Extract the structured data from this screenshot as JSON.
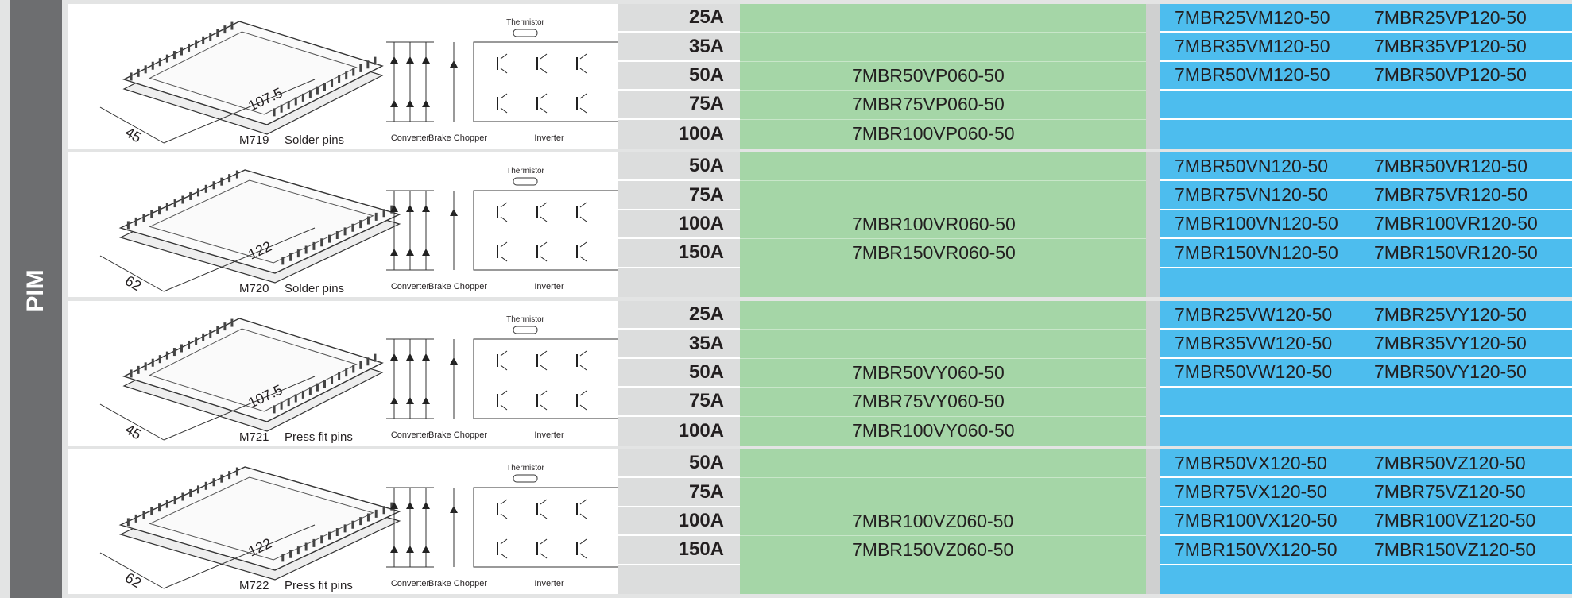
{
  "side_label": "PIM",
  "groups": [
    {
      "package": {
        "model": "M719",
        "pins": "Solder pins",
        "width": "45",
        "length": "107.5",
        "thermistor": "Thermistor",
        "converter": "Converter",
        "chopper": "Brake Chopper",
        "inverter": "Inverter"
      },
      "rows": [
        {
          "rating": "25A",
          "v600": null,
          "v1200a": "7MBR25VM120-50",
          "v1200b": "7MBR25VP120-50"
        },
        {
          "rating": "35A",
          "v600": null,
          "v1200a": "7MBR35VM120-50",
          "v1200b": "7MBR35VP120-50"
        },
        {
          "rating": "50A",
          "v600": "7MBR50VP060-50",
          "v1200a": "7MBR50VM120-50",
          "v1200b": "7MBR50VP120-50"
        },
        {
          "rating": "75A",
          "v600": "7MBR75VP060-50",
          "v1200a": null,
          "v1200b": null
        },
        {
          "rating": "100A",
          "v600": "7MBR100VP060-50",
          "v1200a": null,
          "v1200b": null
        }
      ]
    },
    {
      "package": {
        "model": "M720",
        "pins": "Solder pins",
        "width": "62",
        "length": "122",
        "thermistor": "Thermistor",
        "converter": "Converter",
        "chopper": "Brake Chopper",
        "inverter": "Inverter"
      },
      "rows": [
        {
          "rating": "50A",
          "v600": null,
          "v1200a": "7MBR50VN120-50",
          "v1200b": "7MBR50VR120-50"
        },
        {
          "rating": "75A",
          "v600": null,
          "v1200a": "7MBR75VN120-50",
          "v1200b": "7MBR75VR120-50"
        },
        {
          "rating": "100A",
          "v600": "7MBR100VR060-50",
          "v1200a": "7MBR100VN120-50",
          "v1200b": "7MBR100VR120-50"
        },
        {
          "rating": "150A",
          "v600": "7MBR150VR060-50",
          "v1200a": "7MBR150VN120-50",
          "v1200b": "7MBR150VR120-50"
        },
        {
          "rating": null,
          "v600": null,
          "v1200a": null,
          "v1200b": null
        }
      ]
    },
    {
      "package": {
        "model": "M721",
        "pins": "Press fit pins",
        "width": "45",
        "length": "107.5",
        "thermistor": "Thermistor",
        "converter": "Converter",
        "chopper": "Brake Chopper",
        "inverter": "Inverter"
      },
      "rows": [
        {
          "rating": "25A",
          "v600": null,
          "v1200a": "7MBR25VW120-50",
          "v1200b": "7MBR25VY120-50"
        },
        {
          "rating": "35A",
          "v600": null,
          "v1200a": "7MBR35VW120-50",
          "v1200b": "7MBR35VY120-50"
        },
        {
          "rating": "50A",
          "v600": "7MBR50VY060-50",
          "v1200a": "7MBR50VW120-50",
          "v1200b": "7MBR50VY120-50"
        },
        {
          "rating": "75A",
          "v600": "7MBR75VY060-50",
          "v1200a": null,
          "v1200b": null
        },
        {
          "rating": "100A",
          "v600": "7MBR100VY060-50",
          "v1200a": null,
          "v1200b": null
        }
      ]
    },
    {
      "package": {
        "model": "M722",
        "pins": "Press fit pins",
        "width": "62",
        "length": "122",
        "thermistor": "Thermistor",
        "converter": "Converter",
        "chopper": "Brake Chopper",
        "inverter": "Inverter"
      },
      "rows": [
        {
          "rating": "50A",
          "v600": null,
          "v1200a": "7MBR50VX120-50",
          "v1200b": "7MBR50VZ120-50"
        },
        {
          "rating": "75A",
          "v600": null,
          "v1200a": "7MBR75VX120-50",
          "v1200b": "7MBR75VZ120-50"
        },
        {
          "rating": "100A",
          "v600": "7MBR100VZ060-50",
          "v1200a": "7MBR100VX120-50",
          "v1200b": "7MBR100VZ120-50"
        },
        {
          "rating": "150A",
          "v600": "7MBR150VZ060-50",
          "v1200a": "7MBR150VX120-50",
          "v1200b": "7MBR150VZ120-50"
        },
        {
          "rating": null,
          "v600": null,
          "v1200a": null,
          "v1200b": null
        }
      ]
    }
  ]
}
